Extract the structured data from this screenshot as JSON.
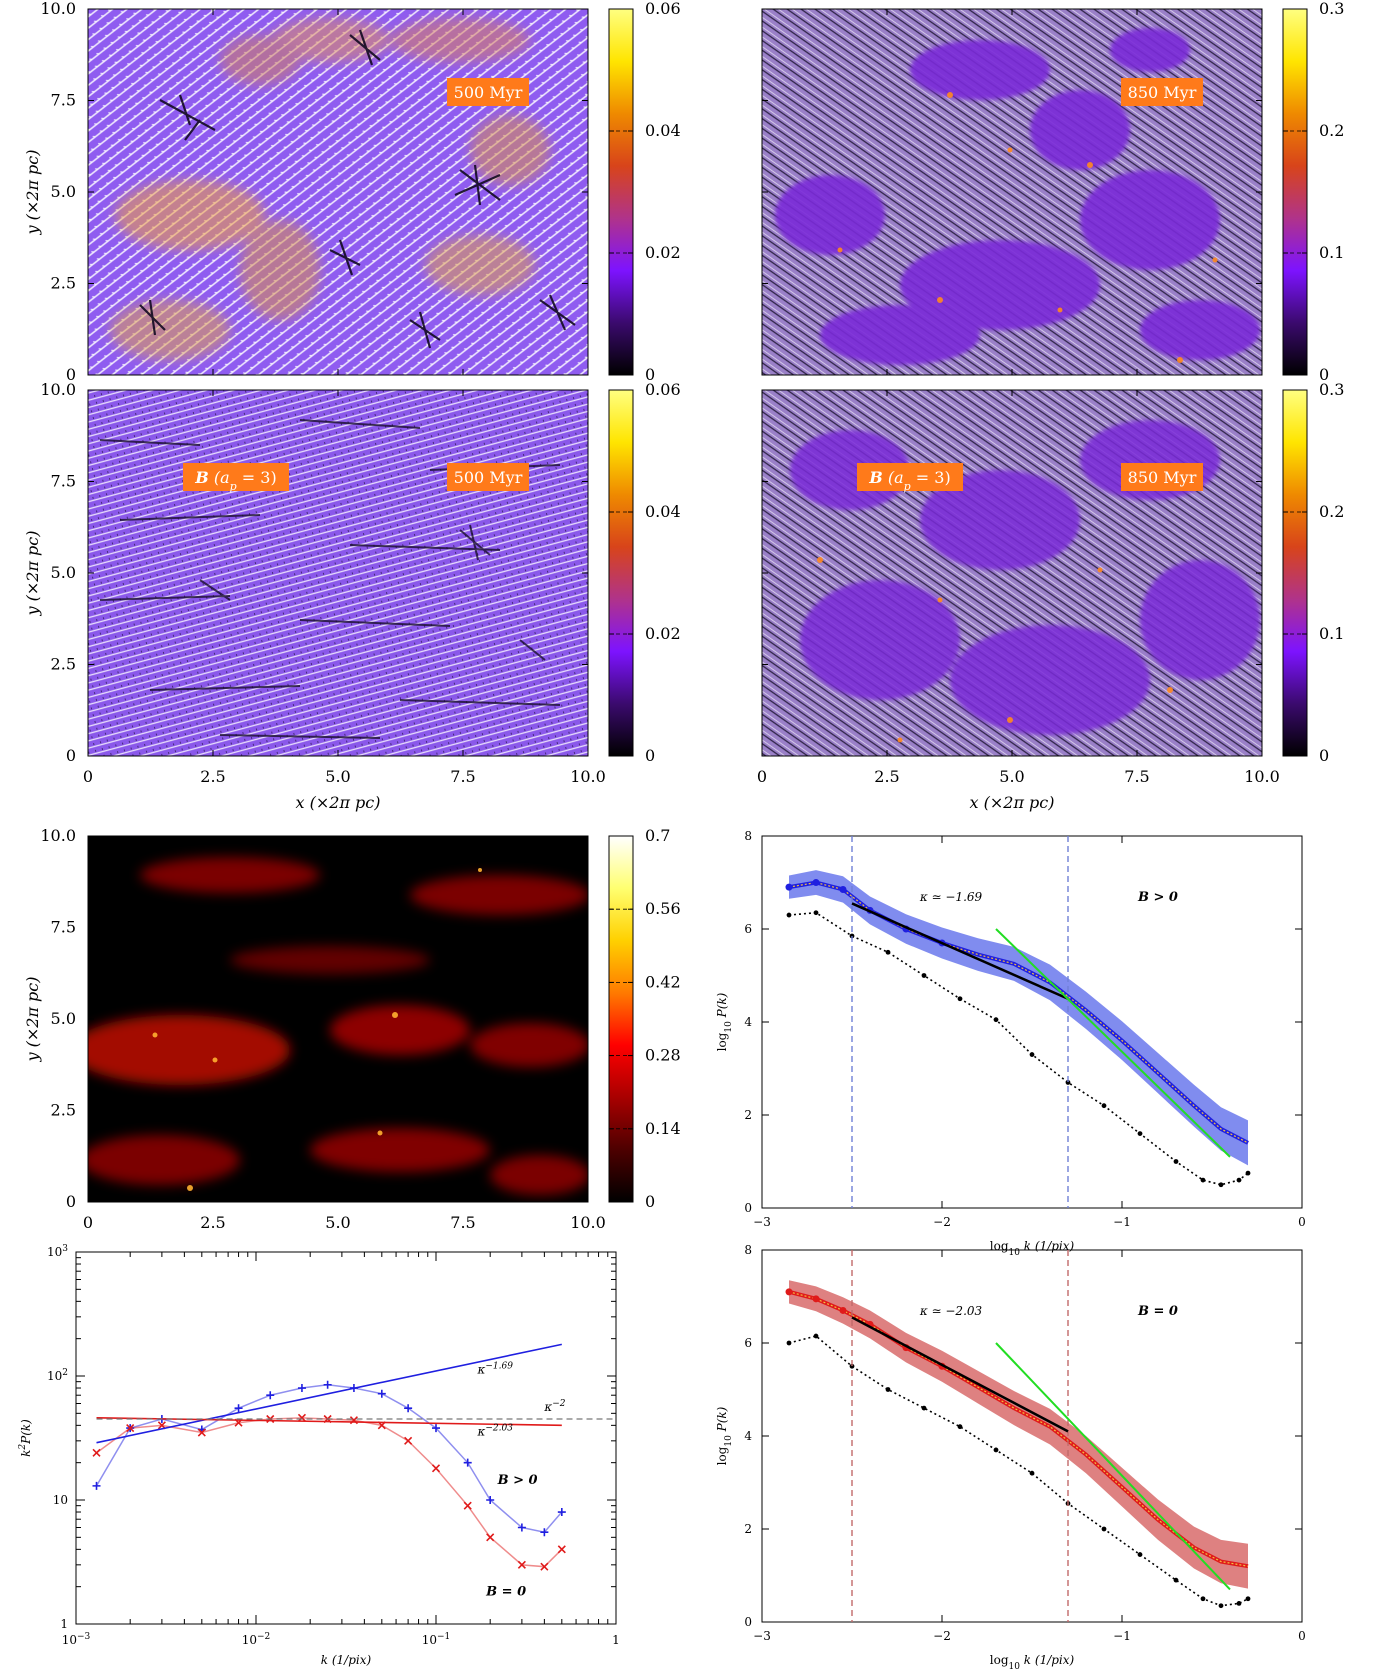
{
  "colors": {
    "magma_stops": [
      "#000000",
      "#3b0a6e",
      "#7d13ff",
      "#b0338a",
      "#d8441a",
      "#ef8a00",
      "#ffe500",
      "#ffff80"
    ],
    "hot_stops": [
      "#000000",
      "#4d0000",
      "#a80000",
      "#ff0000",
      "#ff7a00",
      "#ffd000",
      "#ffff70",
      "#ffffff"
    ],
    "b_pos_blue": "#1f1fe0",
    "b_pos_band": "#6a78ec",
    "b_zero_red": "#e01a1a",
    "b_zero_band": "#d86b6b",
    "fit_green": "#22dd22",
    "vline_blue": "#6f7fd6",
    "vline_red": "#c26a6a",
    "orange_label": "#ff7a1a"
  },
  "labels": {
    "t500": "500 Myr",
    "t850": "850 Myr",
    "bfield": "B (a",
    "bfield_sub": "p",
    "bfield_end": " = 3)",
    "ylabel_map": "y (×2π pc)",
    "xlabel_map": "x (×2π pc)",
    "ylabel_spec": "log",
    "ylabel_spec_sub": "10",
    "ylabel_spec_end": " P(k)",
    "xlabel_spec": "log",
    "xlabel_spec_sub": "10",
    "xlabel_spec_end": " k (1/pix)",
    "ylabel_k2": "k",
    "ylabel_k2_sup": "2",
    "ylabel_k2_end": "P(k)",
    "xlabel_k2": "k (1/pix)",
    "kappa_pos": "κ ≃ −1.69",
    "kappa_zero": "κ ≃ −2.03",
    "b_pos": "B > 0",
    "b_zero": "B = 0",
    "kappa_m169": "κ",
    "kappa_m169_sup": "−1.69",
    "kappa_m2": "κ",
    "kappa_m2_sup": "−2",
    "kappa_m203": "κ",
    "kappa_m203_sup": "−2.03"
  },
  "map_ticks": [
    "0",
    "2.5",
    "5.0",
    "7.5",
    "10.0"
  ],
  "colorbars": {
    "small": [
      "0",
      "0.02",
      "0.04",
      "0.06"
    ],
    "large": [
      "0",
      "0.1",
      "0.2",
      "0.3"
    ],
    "hot": [
      "0",
      "0.14",
      "0.28",
      "0.42",
      "0.56",
      "0.7"
    ]
  },
  "chart_data": [
    {
      "type": "line",
      "title": "",
      "xlabel": "log10 k (1/pix)",
      "ylabel": "log10 P(k)",
      "xlim": [
        -3,
        0
      ],
      "ylim": [
        0,
        8
      ],
      "xticks": [
        "−3",
        "−2",
        "−1",
        "0"
      ],
      "yticks": [
        "0",
        "2",
        "4",
        "6",
        "8"
      ],
      "annotation": "κ ≃ −1.69",
      "legend": "B > 0",
      "vlines": [
        -2.5,
        -1.3
      ],
      "series": [
        {
          "name": "B > 0",
          "x": [
            -2.85,
            -2.7,
            -2.55,
            -2.4,
            -2.2,
            -2.0,
            -1.8,
            -1.6,
            -1.4,
            -1.2,
            -1.0,
            -0.8,
            -0.6,
            -0.45,
            -0.3
          ],
          "values": [
            6.9,
            7.0,
            6.85,
            6.4,
            6.0,
            5.7,
            5.45,
            5.25,
            4.85,
            4.25,
            3.6,
            2.9,
            2.2,
            1.7,
            1.4
          ]
        },
        {
          "name": "",
          "x": [
            -2.85,
            -2.7,
            -2.5,
            -2.3,
            -2.1,
            -1.9,
            -1.7,
            -1.5,
            -1.3,
            -1.1,
            -0.9,
            -0.7,
            -0.55,
            -0.45,
            -0.35,
            -0.3
          ],
          "values": [
            6.3,
            6.35,
            5.85,
            5.5,
            5.0,
            4.5,
            4.05,
            3.3,
            2.7,
            2.2,
            1.6,
            1.0,
            0.6,
            0.5,
            0.6,
            0.75
          ]
        }
      ],
      "fits": [
        {
          "x": [
            -2.5,
            -1.3
          ],
          "values": [
            6.55,
            4.5
          ]
        },
        {
          "x": [
            -1.7,
            -0.4
          ],
          "values": [
            6.0,
            1.1
          ]
        }
      ]
    },
    {
      "type": "line",
      "title": "",
      "xlabel": "log10 k (1/pix)",
      "ylabel": "log10 P(k)",
      "xlim": [
        -3,
        0
      ],
      "ylim": [
        0,
        8
      ],
      "xticks": [
        "−3",
        "−2",
        "−1",
        "0"
      ],
      "yticks": [
        "0",
        "2",
        "4",
        "6",
        "8"
      ],
      "annotation": "κ ≃ −2.03",
      "legend": "B = 0",
      "vlines": [
        -2.5,
        -1.3
      ],
      "series": [
        {
          "name": "B = 0",
          "x": [
            -2.85,
            -2.7,
            -2.55,
            -2.4,
            -2.2,
            -2.0,
            -1.8,
            -1.6,
            -1.4,
            -1.2,
            -1.0,
            -0.8,
            -0.6,
            -0.45,
            -0.3
          ],
          "values": [
            7.1,
            6.95,
            6.7,
            6.4,
            5.9,
            5.5,
            5.05,
            4.6,
            4.2,
            3.6,
            2.9,
            2.2,
            1.6,
            1.3,
            1.2
          ]
        },
        {
          "name": "",
          "x": [
            -2.85,
            -2.7,
            -2.5,
            -2.3,
            -2.1,
            -1.9,
            -1.7,
            -1.5,
            -1.3,
            -1.1,
            -0.9,
            -0.7,
            -0.55,
            -0.45,
            -0.35,
            -0.3
          ],
          "values": [
            6.0,
            6.15,
            5.5,
            5.0,
            4.6,
            4.2,
            3.7,
            3.2,
            2.55,
            2.0,
            1.45,
            0.9,
            0.5,
            0.35,
            0.4,
            0.5
          ]
        }
      ],
      "fits": [
        {
          "x": [
            -2.5,
            -1.3
          ],
          "values": [
            6.55,
            4.1
          ]
        },
        {
          "x": [
            -1.7,
            -0.4
          ],
          "values": [
            6.0,
            0.7
          ]
        }
      ]
    },
    {
      "type": "scatter",
      "title": "",
      "xlabel": "k (1/pix)",
      "ylabel": "k^2 P(k)",
      "xscale": "log",
      "yscale": "log",
      "xlim": [
        0.001,
        1
      ],
      "ylim": [
        1,
        1000
      ],
      "xticks": [
        "10",
        "10",
        "10",
        "1"
      ],
      "xtick_exps": [
        "−3",
        "−2",
        "−1",
        ""
      ],
      "yticks": [
        "1",
        "10",
        "10",
        "10"
      ],
      "ytick_exps": [
        "",
        "",
        "2",
        "3"
      ],
      "series": [
        {
          "name": "B > 0",
          "x": [
            0.0013,
            0.002,
            0.003,
            0.005,
            0.008,
            0.012,
            0.018,
            0.025,
            0.035,
            0.05,
            0.07,
            0.1,
            0.15,
            0.2,
            0.3,
            0.4,
            0.5
          ],
          "values": [
            13,
            38,
            45,
            37,
            55,
            70,
            80,
            85,
            80,
            72,
            55,
            38,
            20,
            10,
            6,
            5.5,
            8
          ]
        },
        {
          "name": "B = 0",
          "x": [
            0.0013,
            0.002,
            0.003,
            0.005,
            0.008,
            0.012,
            0.018,
            0.025,
            0.035,
            0.05,
            0.07,
            0.1,
            0.15,
            0.2,
            0.3,
            0.4,
            0.5
          ],
          "values": [
            24,
            38,
            40,
            35,
            42,
            45,
            46,
            45,
            44,
            40,
            30,
            18,
            9,
            5,
            3,
            2.9,
            4
          ]
        }
      ],
      "fits": [
        {
          "name": "κ^−1.69",
          "x": [
            0.0013,
            0.5
          ],
          "values": [
            29,
            180
          ]
        },
        {
          "name": "κ^−2.03",
          "x": [
            0.0013,
            0.5
          ],
          "values": [
            46,
            40
          ]
        },
        {
          "name": "κ^−2",
          "x": [
            0.0013,
            1.0
          ],
          "values": [
            45,
            45
          ]
        }
      ]
    }
  ]
}
